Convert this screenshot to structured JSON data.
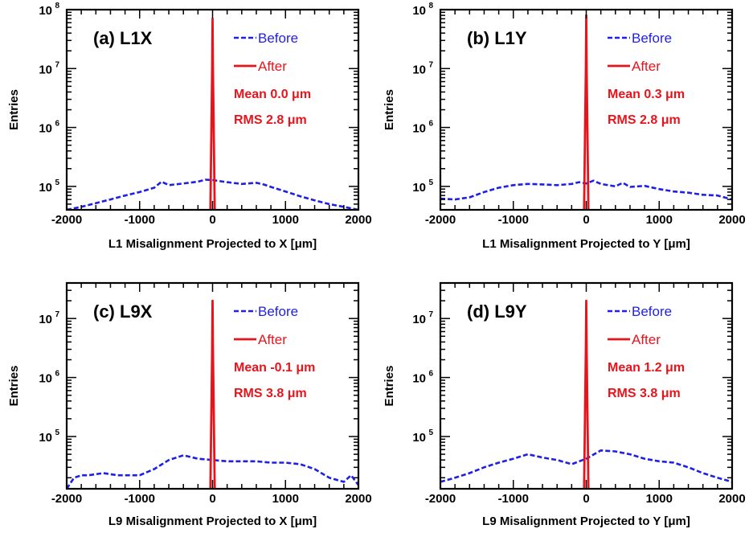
{
  "colors": {
    "before": "#1f1fe8",
    "after": "#e8141c",
    "axis": "#000000"
  },
  "chart_data": [
    {
      "type": "line",
      "title": "(a) L1X",
      "xlabel": "L1 Misalignment Projected to X [μm]",
      "ylabel": "Entries",
      "yscale": "log",
      "xlim": [
        -2000,
        2000
      ],
      "ylim": [
        40000,
        100000000
      ],
      "xticks": [
        "-2000",
        "-1000",
        "0",
        "1000",
        "2000"
      ],
      "yticks": [
        {
          "base": "10",
          "exp": "5",
          "value": 100000
        },
        {
          "base": "10",
          "exp": "6",
          "value": 1000000
        },
        {
          "base": "10",
          "exp": "7",
          "value": 10000000
        },
        {
          "base": "10",
          "exp": "8",
          "value": 100000000
        }
      ],
      "legend": [
        "Before",
        "After"
      ],
      "stats": [
        "Mean 0.0  μm",
        "RMS 2.8  μm"
      ],
      "series": [
        {
          "name": "Before",
          "style": "dashed",
          "x": [
            -2000,
            -1800,
            -1600,
            -1400,
            -1200,
            -1000,
            -800,
            -700,
            -600,
            -400,
            -200,
            -100,
            0,
            200,
            400,
            600,
            700,
            800,
            1000,
            1200,
            1400,
            1600,
            1800,
            2000
          ],
          "y": [
            40000,
            45000,
            52000,
            60000,
            70000,
            80000,
            95000,
            120000,
            105000,
            112000,
            120000,
            130000,
            128000,
            118000,
            110000,
            115000,
            108000,
            98000,
            82000,
            68000,
            58000,
            50000,
            45000,
            40000
          ]
        },
        {
          "name": "After",
          "style": "solid",
          "x": [
            -30,
            -5,
            0,
            5,
            30
          ],
          "y": [
            40000,
            10000000,
            70000000,
            10000000,
            40000
          ]
        }
      ]
    },
    {
      "type": "line",
      "title": "(b) L1Y",
      "xlabel": "L1 Misalignment Projected to Y [μm]",
      "ylabel": "Entries",
      "yscale": "log",
      "xlim": [
        -2000,
        2000
      ],
      "ylim": [
        40000,
        100000000
      ],
      "xticks": [
        "-2000",
        "-1000",
        "0",
        "1000",
        "2000"
      ],
      "yticks": [
        {
          "base": "10",
          "exp": "5",
          "value": 100000
        },
        {
          "base": "10",
          "exp": "6",
          "value": 1000000
        },
        {
          "base": "10",
          "exp": "7",
          "value": 10000000
        },
        {
          "base": "10",
          "exp": "8",
          "value": 100000000
        }
      ],
      "legend": [
        "Before",
        "After"
      ],
      "stats": [
        "Mean 0.3  μm",
        "RMS 2.8  μm"
      ],
      "series": [
        {
          "name": "Before",
          "style": "dashed",
          "x": [
            -2000,
            -1800,
            -1600,
            -1400,
            -1200,
            -1000,
            -800,
            -600,
            -400,
            -200,
            -100,
            0,
            100,
            200,
            400,
            500,
            600,
            800,
            1000,
            1200,
            1400,
            1600,
            1800,
            2000
          ],
          "y": [
            62000,
            60000,
            65000,
            80000,
            95000,
            105000,
            110000,
            108000,
            105000,
            110000,
            118000,
            112000,
            125000,
            110000,
            100000,
            115000,
            98000,
            102000,
            90000,
            82000,
            78000,
            72000,
            70000,
            60000
          ]
        },
        {
          "name": "After",
          "style": "solid",
          "x": [
            -30,
            -5,
            0,
            5,
            30
          ],
          "y": [
            40000,
            10000000,
            80000000,
            10000000,
            40000
          ]
        }
      ]
    },
    {
      "type": "line",
      "title": "(c) L9X",
      "xlabel": "L9 Misalignment Projected to X [μm]",
      "ylabel": "Entries",
      "yscale": "log",
      "xlim": [
        -2000,
        2000
      ],
      "ylim": [
        13000,
        40000000
      ],
      "xticks": [
        "-2000",
        "-1000",
        "0",
        "1000",
        "2000"
      ],
      "yticks": [
        {
          "base": "10",
          "exp": "5",
          "value": 100000
        },
        {
          "base": "10",
          "exp": "6",
          "value": 1000000
        },
        {
          "base": "10",
          "exp": "7",
          "value": 10000000
        }
      ],
      "legend": [
        "Before",
        "After"
      ],
      "stats": [
        "Mean -0.1  μm",
        "RMS 3.8  μm"
      ],
      "series": [
        {
          "name": "Before",
          "style": "dashed",
          "x": [
            -2000,
            -1900,
            -1800,
            -1700,
            -1500,
            -1300,
            -1000,
            -800,
            -600,
            -400,
            -200,
            0,
            200,
            400,
            600,
            800,
            1000,
            1200,
            1400,
            1600,
            1800,
            1900,
            2000
          ],
          "y": [
            13000,
            20000,
            22000,
            22000,
            24000,
            22000,
            22000,
            28000,
            40000,
            48000,
            42000,
            40000,
            38000,
            38000,
            38000,
            36000,
            36000,
            34000,
            28000,
            20000,
            17000,
            22000,
            15000
          ]
        },
        {
          "name": "After",
          "style": "solid",
          "x": [
            -30,
            -5,
            0,
            5,
            30
          ],
          "y": [
            13000,
            3000000,
            20000000,
            3000000,
            13000
          ]
        }
      ]
    },
    {
      "type": "line",
      "title": "(d) L9Y",
      "xlabel": "L9 Misalignment Projected to Y [μm]",
      "ylabel": "Entries",
      "yscale": "log",
      "xlim": [
        -2000,
        2000
      ],
      "ylim": [
        13000,
        40000000
      ],
      "xticks": [
        "-2000",
        "-1000",
        "0",
        "1000",
        "2000"
      ],
      "yticks": [
        {
          "base": "10",
          "exp": "5",
          "value": 100000
        },
        {
          "base": "10",
          "exp": "6",
          "value": 1000000
        },
        {
          "base": "10",
          "exp": "7",
          "value": 10000000
        }
      ],
      "legend": [
        "Before",
        "After"
      ],
      "stats": [
        "Mean 1.2  μm",
        "RMS 3.8  μm"
      ],
      "series": [
        {
          "name": "Before",
          "style": "dashed",
          "x": [
            -2000,
            -1800,
            -1600,
            -1400,
            -1200,
            -1000,
            -800,
            -600,
            -400,
            -200,
            0,
            200,
            400,
            600,
            800,
            1000,
            1200,
            1400,
            1600,
            1800,
            2000
          ],
          "y": [
            17000,
            20000,
            24000,
            30000,
            36000,
            42000,
            50000,
            44000,
            40000,
            34000,
            42000,
            58000,
            56000,
            50000,
            42000,
            38000,
            36000,
            30000,
            24000,
            20000,
            17000
          ]
        },
        {
          "name": "After",
          "style": "solid",
          "x": [
            -30,
            -5,
            0,
            5,
            30
          ],
          "y": [
            13000,
            3000000,
            20000000,
            3000000,
            13000
          ]
        }
      ]
    }
  ]
}
